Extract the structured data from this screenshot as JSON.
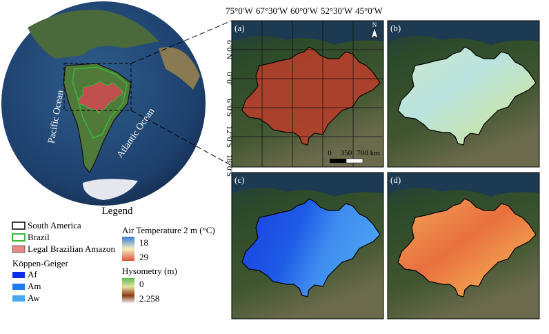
{
  "globe": {
    "ocean_labels": [
      "Pacific Ocean",
      "Atlantic Ocean"
    ]
  },
  "grid_labels": {
    "longitude": [
      "75°0′W",
      "67°30′W",
      "60°0′W",
      "52°30′W",
      "45°0′W"
    ],
    "latitude": [
      "6°0′N",
      "0°0′",
      "6°0′S",
      "12°0′S",
      "18°0′S"
    ]
  },
  "panels": [
    "(a)",
    "(b)",
    "(c)",
    "(d)"
  ],
  "north_arrow": "N",
  "scale_bar": [
    "0",
    "350",
    "700 km"
  ],
  "legend": {
    "title": "Legend",
    "boundaries": [
      "South America",
      "Brazil",
      "Legal Brazilian Amazon"
    ],
    "koppen": {
      "title": "Köppen-Geiger",
      "classes": [
        "Af",
        "Am",
        "Aw"
      ]
    },
    "temperature": {
      "title": "Air Temperature 2 m (°C)",
      "min": "18",
      "max": "29"
    },
    "hypsometry": {
      "title": "Hysometry (m)",
      "min": "0",
      "max": "2.258"
    }
  }
}
